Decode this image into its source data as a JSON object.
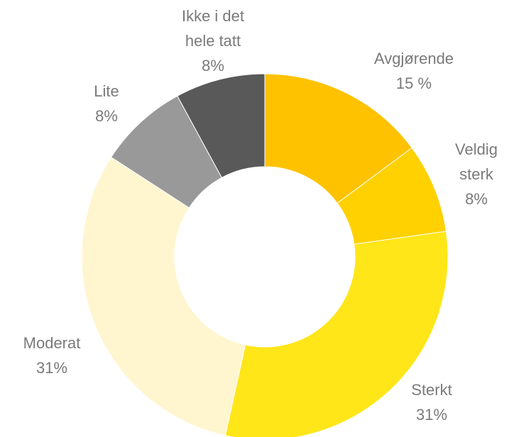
{
  "chart_data": {
    "type": "donut",
    "categories": [
      "Avgjørende",
      "Veldig sterk",
      "Sterkt",
      "Moderat",
      "Lite",
      "Ikke i det hele tatt"
    ],
    "values": [
      15,
      8,
      31,
      31,
      8,
      8
    ],
    "value_labels": [
      "15 %",
      "8%",
      "31%",
      "31%",
      "8%",
      "8%"
    ],
    "colors": [
      "#fec200",
      "#ffd100",
      "#ffe619",
      "#fff6d0",
      "#999999",
      "#595959"
    ]
  }
}
